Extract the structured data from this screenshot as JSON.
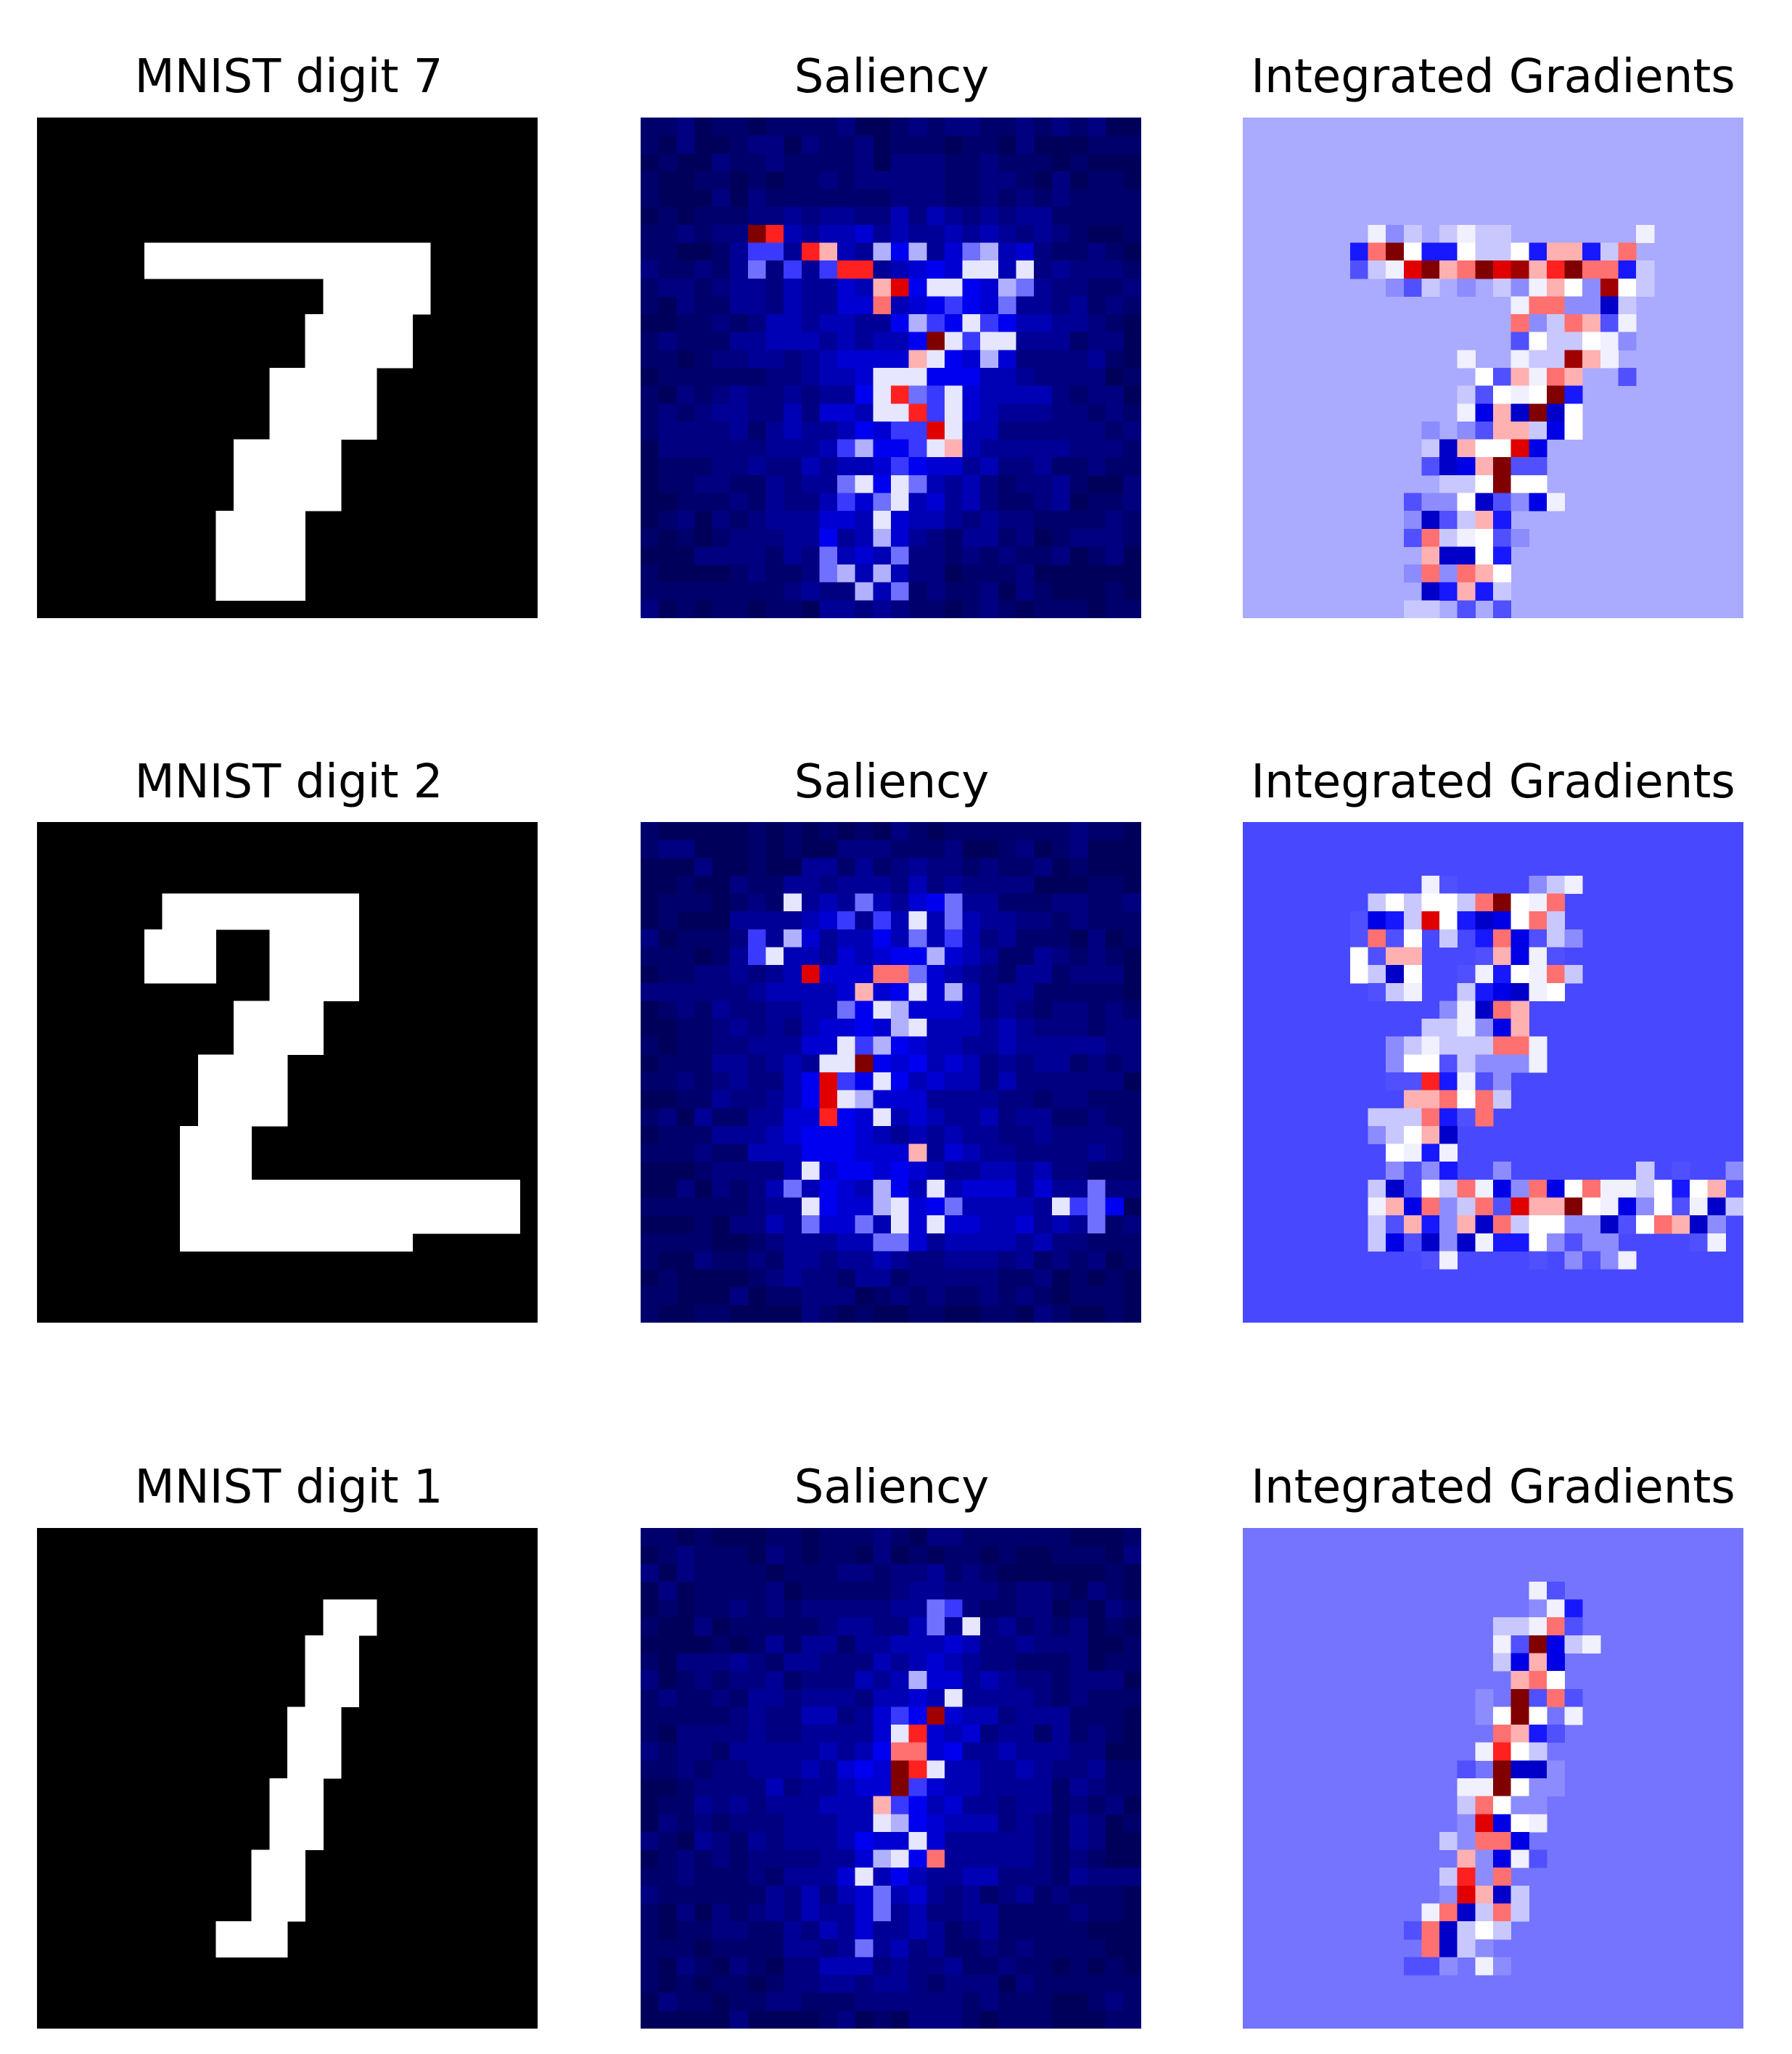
{
  "figure": {
    "rows": [
      {
        "digit": 7,
        "panels": [
          {
            "title": "MNIST digit 7",
            "kind": "digit",
            "background": "#000000"
          },
          {
            "title": "Saliency",
            "kind": "saliency",
            "background": "#00005a"
          },
          {
            "title": "Integrated Gradients",
            "kind": "ig",
            "background": "#aaaaff"
          }
        ]
      },
      {
        "digit": 2,
        "panels": [
          {
            "title": "MNIST digit 2",
            "kind": "digit",
            "background": "#000000"
          },
          {
            "title": "Saliency",
            "kind": "saliency",
            "background": "#00005a"
          },
          {
            "title": "Integrated Gradients",
            "kind": "ig",
            "background": "#4848ff"
          }
        ]
      },
      {
        "digit": 1,
        "panels": [
          {
            "title": "MNIST digit 1",
            "kind": "digit",
            "background": "#000000"
          },
          {
            "title": "Saliency",
            "kind": "saliency",
            "background": "#00005a"
          },
          {
            "title": "Integrated Gradients",
            "kind": "ig",
            "background": "#7474ff"
          }
        ]
      }
    ]
  },
  "chart_data": [
    {
      "type": "heatmap",
      "title": "MNIST digit 7",
      "colormap": "gray",
      "grid_size": [
        28,
        28
      ],
      "nonzero_pixels": [
        {
          "rows": [
            7,
            8
          ],
          "cols": [
            6,
            21
          ]
        },
        {
          "rows": [
            9,
            10
          ],
          "cols": [
            16,
            21
          ]
        },
        {
          "rows": [
            11,
            13
          ],
          "cols": [
            15,
            20
          ]
        },
        {
          "rows": [
            14,
            17
          ],
          "cols": [
            13,
            18
          ]
        },
        {
          "rows": [
            18,
            21
          ],
          "cols": [
            11,
            16
          ]
        },
        {
          "rows": [
            22,
            26
          ],
          "cols": [
            10,
            14
          ]
        }
      ]
    },
    {
      "type": "heatmap",
      "title": "Saliency",
      "colormap": "seismic",
      "grid_size": [
        28,
        28
      ],
      "hot_pixels": [
        [
          6,
          6
        ],
        [
          6,
          7
        ],
        [
          7,
          9
        ],
        [
          7,
          10
        ],
        [
          8,
          11
        ],
        [
          8,
          12
        ],
        [
          9,
          13
        ],
        [
          9,
          14
        ],
        [
          10,
          13
        ],
        [
          12,
          16
        ],
        [
          13,
          15
        ],
        [
          15,
          14
        ],
        [
          16,
          15
        ],
        [
          17,
          16
        ],
        [
          18,
          17
        ]
      ]
    },
    {
      "type": "heatmap",
      "title": "Integrated Gradients",
      "colormap": "bwr",
      "grid_size": [
        28,
        28
      ],
      "hot_pixels": [
        [
          7,
          7
        ],
        [
          7,
          8
        ],
        [
          8,
          9
        ],
        [
          8,
          10
        ],
        [
          8,
          11
        ],
        [
          8,
          12
        ],
        [
          8,
          13
        ],
        [
          8,
          14
        ],
        [
          8,
          15
        ],
        [
          8,
          16
        ],
        [
          8,
          17
        ],
        [
          8,
          18
        ],
        [
          9,
          20
        ],
        [
          13,
          18
        ],
        [
          14,
          17
        ],
        [
          15,
          17
        ],
        [
          16,
          16
        ],
        [
          17,
          15
        ],
        [
          18,
          15
        ],
        [
          19,
          14
        ],
        [
          20,
          14
        ]
      ]
    },
    {
      "type": "heatmap",
      "title": "MNIST digit 2",
      "colormap": "gray",
      "grid_size": [
        28,
        28
      ],
      "nonzero_pixels": [
        {
          "rows": [
            4,
            5
          ],
          "cols": [
            7,
            17
          ]
        },
        {
          "rows": [
            6,
            8
          ],
          "cols": [
            6,
            9
          ]
        },
        {
          "rows": [
            6,
            9
          ],
          "cols": [
            13,
            17
          ]
        },
        {
          "rows": [
            10,
            12
          ],
          "cols": [
            11,
            15
          ]
        },
        {
          "rows": [
            13,
            16
          ],
          "cols": [
            9,
            13
          ]
        },
        {
          "rows": [
            17,
            19
          ],
          "cols": [
            8,
            11
          ]
        },
        {
          "rows": [
            20,
            22
          ],
          "cols": [
            8,
            26
          ]
        },
        {
          "rows": [
            23,
            23
          ],
          "cols": [
            8,
            20
          ]
        }
      ]
    },
    {
      "type": "heatmap",
      "title": "Saliency",
      "colormap": "seismic",
      "grid_size": [
        28,
        28
      ],
      "hot_pixels": [
        [
          8,
          9
        ],
        [
          8,
          13
        ],
        [
          8,
          14
        ],
        [
          9,
          12
        ],
        [
          13,
          12
        ],
        [
          14,
          10
        ],
        [
          15,
          10
        ],
        [
          16,
          10
        ],
        [
          18,
          15
        ]
      ]
    },
    {
      "type": "heatmap",
      "title": "Integrated Gradients",
      "colormap": "bwr",
      "grid_size": [
        28,
        28
      ],
      "hot_pixels": [
        [
          4,
          14
        ],
        [
          5,
          10
        ],
        [
          14,
          10
        ],
        [
          15,
          10
        ],
        [
          15,
          11
        ],
        [
          16,
          10
        ],
        [
          21,
          15
        ],
        [
          21,
          16
        ],
        [
          21,
          18
        ]
      ]
    },
    {
      "type": "heatmap",
      "title": "MNIST digit 1",
      "colormap": "gray",
      "grid_size": [
        28,
        28
      ],
      "nonzero_pixels": [
        {
          "rows": [
            4,
            5
          ],
          "cols": [
            16,
            18
          ]
        },
        {
          "rows": [
            6,
            9
          ],
          "cols": [
            15,
            17
          ]
        },
        {
          "rows": [
            10,
            13
          ],
          "cols": [
            14,
            16
          ]
        },
        {
          "rows": [
            14,
            17
          ],
          "cols": [
            13,
            15
          ]
        },
        {
          "rows": [
            18,
            21
          ],
          "cols": [
            12,
            14
          ]
        },
        {
          "rows": [
            22,
            23
          ],
          "cols": [
            10,
            13
          ]
        }
      ]
    },
    {
      "type": "heatmap",
      "title": "Saliency",
      "colormap": "seismic",
      "grid_size": [
        28,
        28
      ],
      "hot_pixels": [
        [
          10,
          16
        ],
        [
          11,
          15
        ],
        [
          12,
          14
        ],
        [
          12,
          15
        ],
        [
          13,
          14
        ],
        [
          13,
          15
        ],
        [
          14,
          14
        ],
        [
          15,
          13
        ],
        [
          18,
          16
        ]
      ]
    },
    {
      "type": "heatmap",
      "title": "Integrated Gradients",
      "colormap": "bwr",
      "grid_size": [
        28,
        28
      ],
      "hot_pixels": [
        [
          6,
          16
        ],
        [
          7,
          16
        ],
        [
          8,
          16
        ],
        [
          9,
          15
        ],
        [
          10,
          15
        ],
        [
          11,
          15
        ],
        [
          12,
          14
        ],
        [
          13,
          14
        ],
        [
          14,
          14
        ],
        [
          15,
          13
        ],
        [
          16,
          13
        ],
        [
          17,
          13
        ],
        [
          18,
          12
        ],
        [
          19,
          12
        ],
        [
          20,
          12
        ],
        [
          21,
          11
        ]
      ]
    }
  ]
}
